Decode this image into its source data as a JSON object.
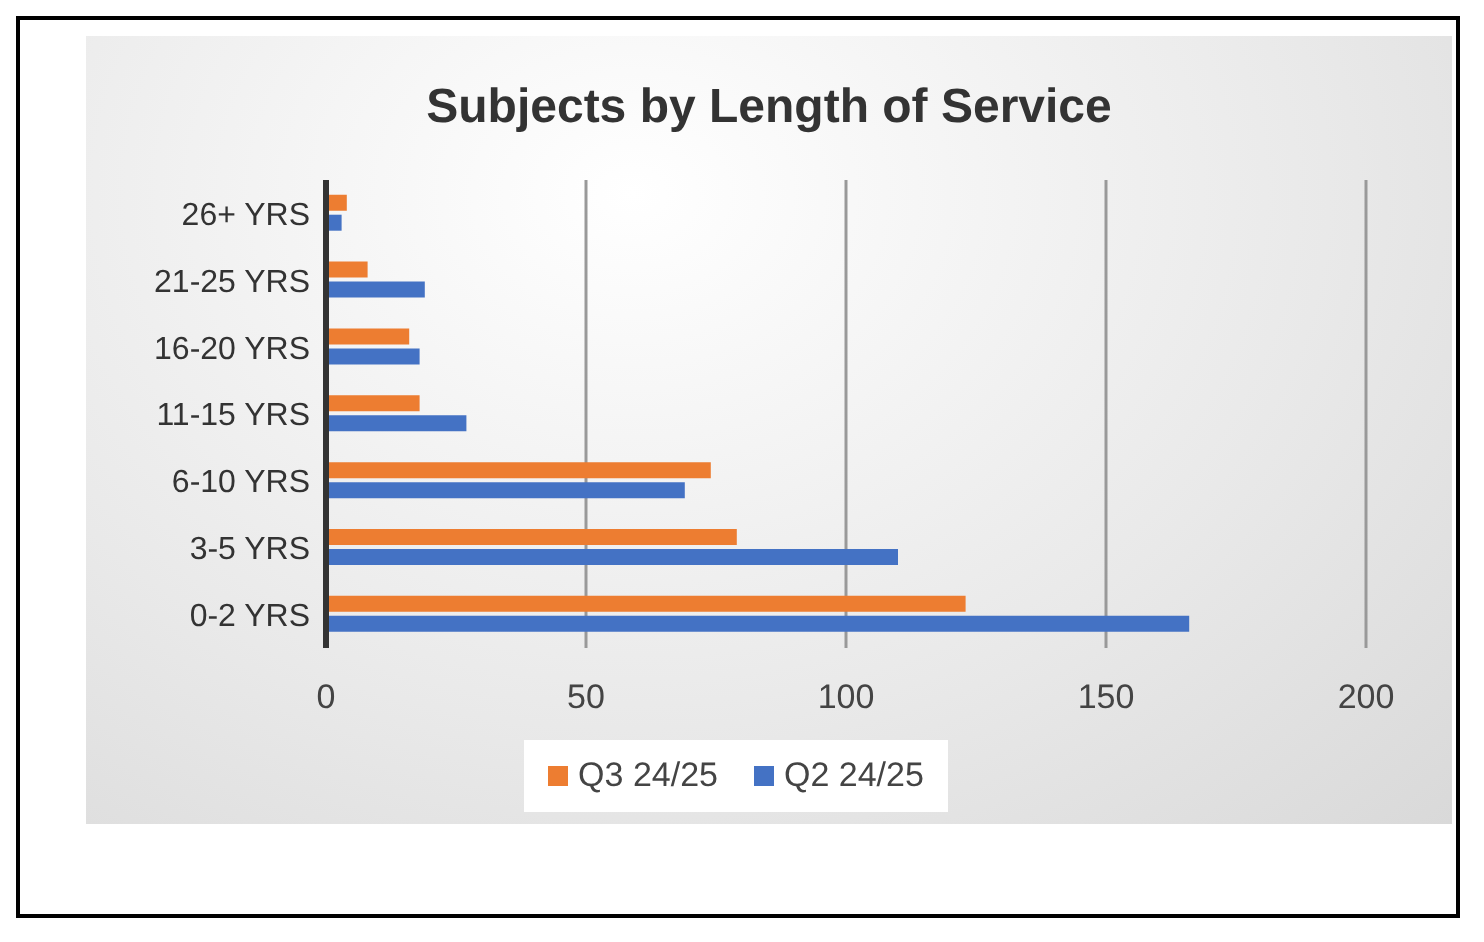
{
  "chart_data": {
    "type": "bar",
    "orientation": "horizontal",
    "title": "Subjects by Length of Service",
    "categories": [
      "26+ YRS",
      "21-25 YRS",
      "16-20 YRS",
      "11-15 YRS",
      "6-10 YRS",
      "3-5 YRS",
      "0-2 YRS"
    ],
    "series": [
      {
        "name": "Q3 24/25",
        "color": "#ed7d31",
        "values": [
          4,
          8,
          16,
          18,
          74,
          79,
          123
        ]
      },
      {
        "name": "Q2 24/25",
        "color": "#4472c4",
        "values": [
          3,
          19,
          18,
          27,
          69,
          110,
          166
        ]
      }
    ],
    "xlim": [
      0,
      200
    ],
    "xticks": [
      0,
      50,
      100,
      150,
      200
    ],
    "grid": "x",
    "legend": "bottom"
  }
}
